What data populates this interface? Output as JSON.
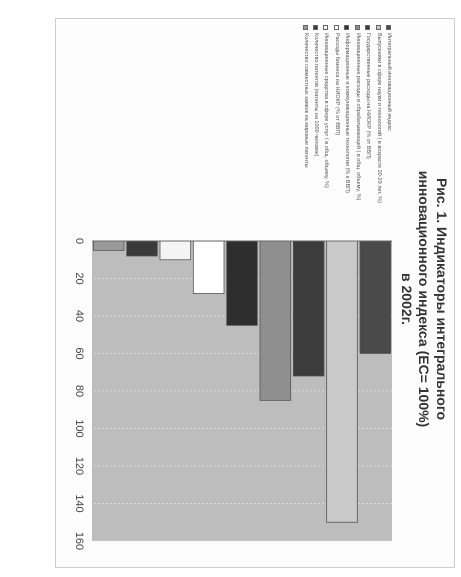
{
  "chart_data": {
    "type": "bar",
    "orientation": "horizontal",
    "title": "Рис. 1. Индикаторы интегрального инновационного индекса (ЕС= 100%) в 2002г.",
    "xlim": [
      0,
      160
    ],
    "x_ticks": [
      "0",
      "20",
      "40",
      "60",
      "80",
      "100",
      "120",
      "140",
      "160"
    ],
    "grid": true,
    "legend_position": "left",
    "series": [
      {
        "name": "Интегральный инновационный индекс",
        "value": 60,
        "color": "#4a4a4a"
      },
      {
        "name": "Выпускники в сфере науки и технологий ( в возрасте 20-29 лет, %)",
        "value": 150,
        "color": "#c9c9c9"
      },
      {
        "name": "Государственные расходы на НИОКР (% от ВВП)",
        "value": 72,
        "color": "#3c3c3c"
      },
      {
        "name": "Инновационные расходы в обрабатывающей ( в общ. объему, %)",
        "value": 85,
        "color": "#8f8f8f"
      },
      {
        "name": "Информационные и коммуникационные технологии (% к ВВП)",
        "value": 45,
        "color": "#2e2e2e"
      },
      {
        "name": "Расходы бизнеса на НИОКР (% от ВВП)",
        "value": 28,
        "color": "#ffffff"
      },
      {
        "name": "Инновационные средства в сфере услуг ( в общ. объему, %)",
        "value": 10,
        "color": "#f4f4f4"
      },
      {
        "name": "Количество патентов (патенты на 1000 человек)",
        "value": 8,
        "color": "#3a3a3a"
      },
      {
        "name": "Количество совместных заявок на мировые патенты",
        "value": 5,
        "color": "#9a9a9a"
      }
    ]
  }
}
